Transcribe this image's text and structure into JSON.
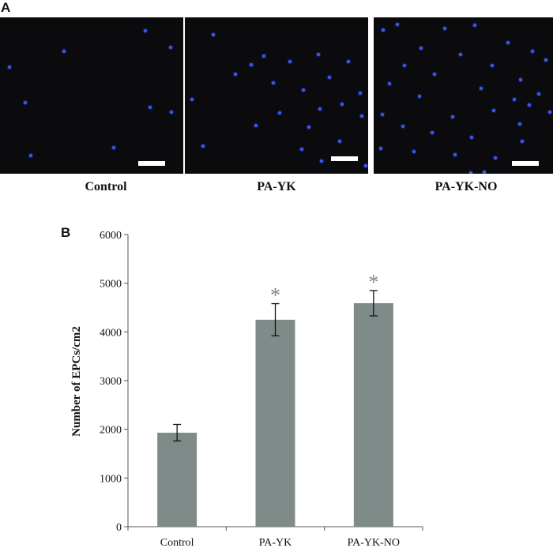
{
  "panel_a": {
    "letter": "A",
    "images": [
      {
        "caption": "Control"
      },
      {
        "caption": "PA-YK"
      },
      {
        "caption": "PA-YK-NO"
      }
    ]
  },
  "panel_b": {
    "letter": "B"
  },
  "chart_data": {
    "type": "bar",
    "categories": [
      "Control",
      "PA-YK",
      "PA-YK-NO"
    ],
    "values": [
      1930,
      4250,
      4590
    ],
    "error": [
      170,
      330,
      260
    ],
    "significance": [
      "",
      "*",
      "*"
    ],
    "title": "",
    "xlabel": "",
    "ylabel": "Number of EPCs/cm2",
    "ylim": [
      0,
      6000
    ],
    "yticks": [
      0,
      1000,
      2000,
      3000,
      4000,
      5000,
      6000
    ],
    "grid": false,
    "bar_color": "#7f8b88"
  }
}
